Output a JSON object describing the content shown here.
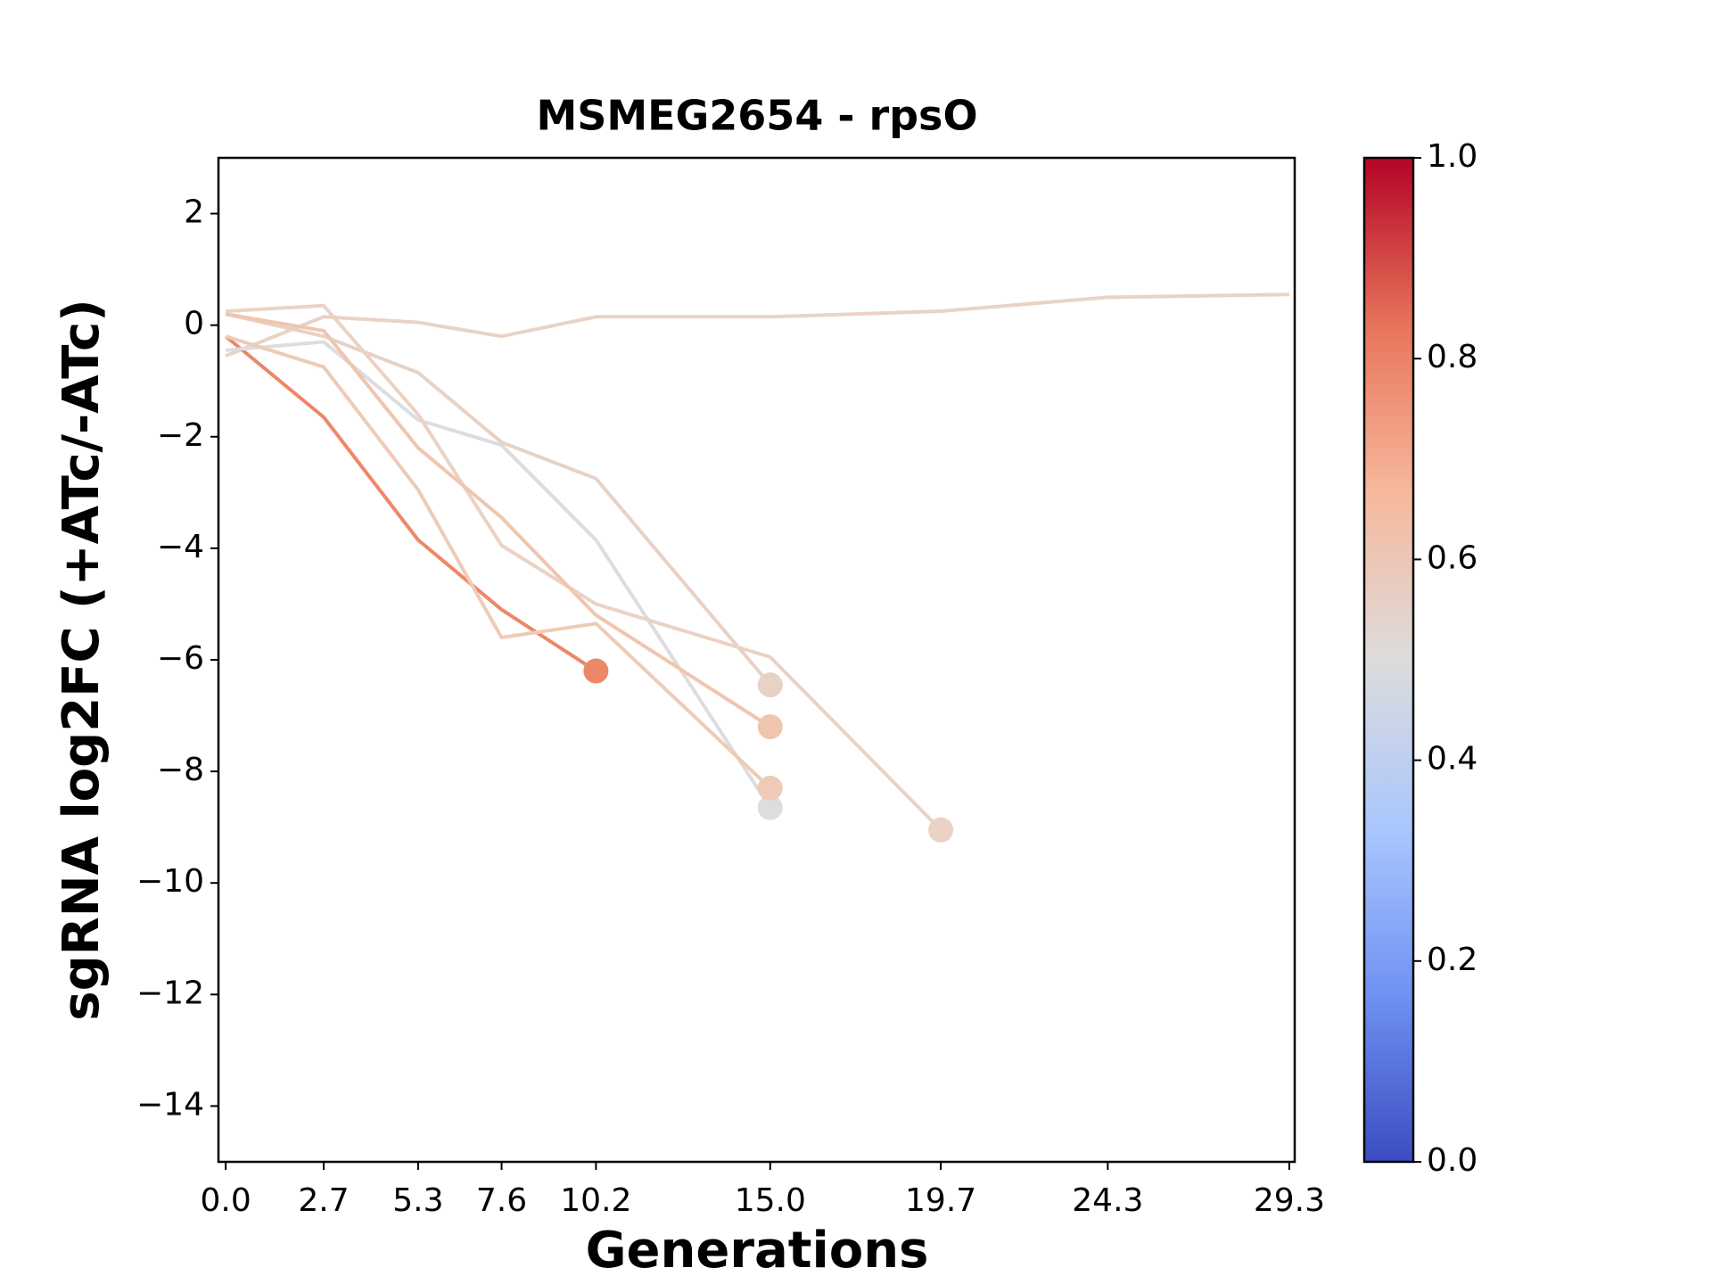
{
  "chart_data": {
    "type": "line",
    "title": "MSMEG2654 - rpsO",
    "x_label": "Generations",
    "y_label": "sgRNA log2FC (+ATc/-ATc)",
    "xlim": [
      -0.2,
      29.45
    ],
    "ylim": [
      -15,
      3
    ],
    "xticks": [
      {
        "value": 0,
        "label": "0.0"
      },
      2.7,
      5.3,
      7.6,
      10.2,
      {
        "value": 15,
        "label": "15.0"
      },
      19.7,
      24.3,
      29.3
    ],
    "yticks": [
      {
        "value": 2,
        "label": "2"
      },
      {
        "value": 0,
        "label": "0"
      },
      {
        "value": -2,
        "label": "−2"
      },
      {
        "value": -4,
        "label": "−4"
      },
      {
        "value": -6,
        "label": "−6"
      },
      {
        "value": -8,
        "label": "−8"
      },
      {
        "value": -10,
        "label": "−10"
      },
      {
        "value": -12,
        "label": "−12"
      },
      {
        "value": -14,
        "label": "−14"
      }
    ],
    "end_marker": true,
    "series": [
      {
        "color": "#e9d3c6",
        "x": [
          0,
          2.7,
          5.3,
          7.6,
          10.2,
          15.0,
          19.7,
          24.3,
          29.3
        ],
        "values": [
          -0.55,
          0.15,
          0.05,
          -0.2,
          0.15,
          0.15,
          0.25,
          0.5,
          0.55
        ],
        "end_marker": false
      },
      {
        "color": "#ec8868",
        "x": [
          0,
          2.7,
          5.3,
          7.6,
          10.2
        ],
        "values": [
          -0.2,
          -1.65,
          -3.85,
          -5.1,
          -6.2
        ]
      },
      {
        "color": "#dcdddf",
        "x": [
          0,
          2.7,
          5.3,
          7.6,
          10.2,
          15.0
        ],
        "values": [
          -0.45,
          -0.3,
          -1.7,
          -2.15,
          -3.85,
          -8.65
        ]
      },
      {
        "color": "#e7d2c5",
        "x": [
          0,
          2.7,
          5.3,
          7.6,
          10.2,
          15.0
        ],
        "values": [
          0.2,
          -0.2,
          -0.85,
          -2.1,
          -2.75,
          -6.45
        ]
      },
      {
        "color": "#ebd2c4",
        "x": [
          0,
          2.7,
          5.3,
          7.6,
          10.2,
          15.0,
          19.7
        ],
        "values": [
          0.25,
          0.35,
          -1.6,
          -3.95,
          -5.0,
          -5.95,
          -9.05
        ]
      },
      {
        "color": "#f0c5ae",
        "x": [
          0,
          2.7,
          5.3,
          7.6,
          10.2,
          15.0
        ],
        "values": [
          0.2,
          -0.1,
          -2.2,
          -3.45,
          -5.2,
          -7.2
        ]
      },
      {
        "color": "#efcbb7",
        "x": [
          0,
          2.7,
          5.3,
          7.6,
          10.2,
          15.0
        ],
        "values": [
          -0.2,
          -0.75,
          -2.95,
          -5.6,
          -5.35,
          -8.3
        ]
      }
    ],
    "colorbar": {
      "lim": [
        0,
        1
      ],
      "ticks": [
        {
          "value": 0,
          "label": "0.0"
        },
        {
          "value": 0.2,
          "label": "0.2"
        },
        {
          "value": 0.4,
          "label": "0.4"
        },
        {
          "value": 0.6,
          "label": "0.6"
        },
        {
          "value": 0.8,
          "label": "0.8"
        },
        {
          "value": 1,
          "label": "1.0"
        }
      ],
      "colors": [
        "#3b4cc0",
        "#6f92f3",
        "#aac7fd",
        "#dddcdc",
        "#f7b89c",
        "#e7745b",
        "#b40426"
      ]
    }
  }
}
